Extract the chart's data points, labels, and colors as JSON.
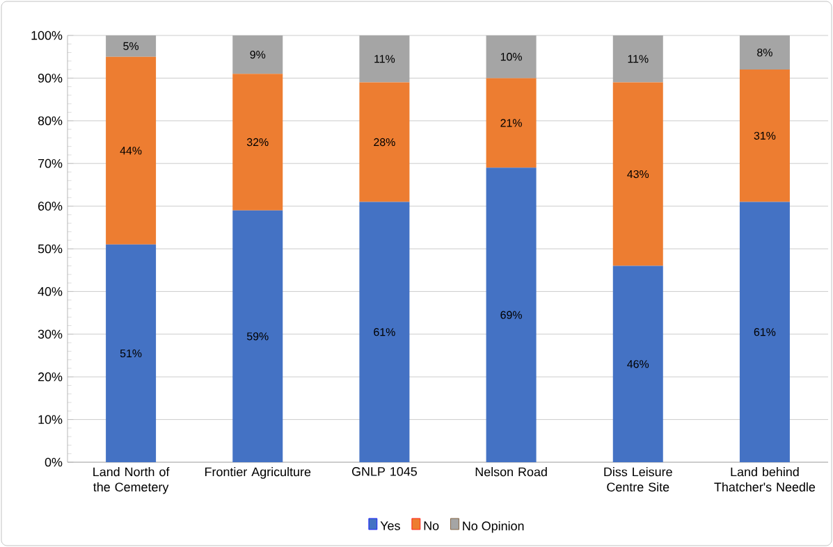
{
  "chart_data": {
    "type": "bar",
    "stacked": true,
    "categories": [
      "Land North of the Cemetery",
      "Frontier Agriculture",
      "GNLP 1045",
      "Nelson Road",
      "Diss Leisure Centre Site",
      "Land behind Thatcher's Needle"
    ],
    "series": [
      {
        "name": "Yes",
        "color": "#4472c4",
        "values": [
          51,
          59,
          61,
          69,
          46,
          61
        ],
        "value_labels": [
          "51%",
          "59%",
          "61%",
          "69%",
          "46%",
          "61%"
        ]
      },
      {
        "name": "No",
        "color": "#ed7d31",
        "values": [
          44,
          32,
          28,
          21,
          43,
          31
        ],
        "value_labels": [
          "44%",
          "32%",
          "28%",
          "21%",
          "43%",
          "31%"
        ]
      },
      {
        "name": "No Opinion",
        "color": "#a5a5a5",
        "values": [
          5,
          9,
          11,
          10,
          11,
          8
        ],
        "value_labels": [
          "5%",
          "9%",
          "11%",
          "10%",
          "11%",
          "8%"
        ]
      }
    ],
    "ylim": [
      0,
      100
    ],
    "yticks": [
      {
        "value": 0,
        "label": "0%"
      },
      {
        "value": 10,
        "label": "10%"
      },
      {
        "value": 20,
        "label": "20%"
      },
      {
        "value": 30,
        "label": "30%"
      },
      {
        "value": 40,
        "label": "40%"
      },
      {
        "value": 50,
        "label": "50%"
      },
      {
        "value": 60,
        "label": "60%"
      },
      {
        "value": 70,
        "label": "70%"
      },
      {
        "value": 80,
        "label": "80%"
      },
      {
        "value": 90,
        "label": "90%"
      },
      {
        "value": 100,
        "label": "100%"
      }
    ],
    "grid": "y",
    "legend": "bottom"
  }
}
